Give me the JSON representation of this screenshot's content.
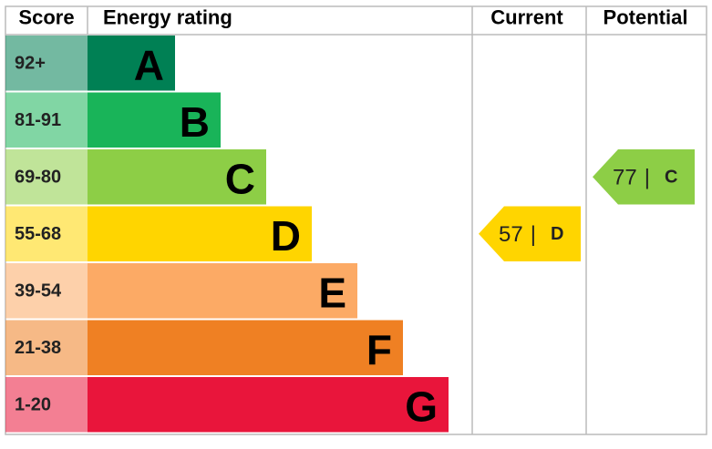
{
  "header": {
    "score": "Score",
    "rating": "Energy rating",
    "current": "Current",
    "potential": "Potential"
  },
  "bands": [
    {
      "score": "92+",
      "letter": "A",
      "color": "#008054"
    },
    {
      "score": "81-91",
      "letter": "B",
      "color": "#19b459"
    },
    {
      "score": "69-80",
      "letter": "C",
      "color": "#8dce46"
    },
    {
      "score": "55-68",
      "letter": "D",
      "color": "#ffd500"
    },
    {
      "score": "39-54",
      "letter": "E",
      "color": "#fcaa65"
    },
    {
      "score": "21-38",
      "letter": "F",
      "color": "#ef8023"
    },
    {
      "score": "1-20",
      "letter": "G",
      "color": "#e9153b"
    }
  ],
  "current": {
    "value": 57,
    "band": "D"
  },
  "potential": {
    "value": 77,
    "band": "C"
  },
  "separator": "|"
}
